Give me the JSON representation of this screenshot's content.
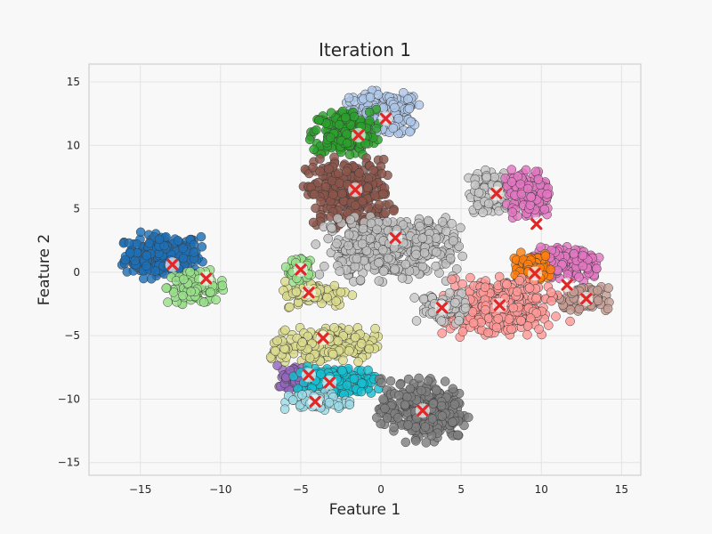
{
  "chart_data": {
    "type": "scatter",
    "title": "Iteration 1",
    "xlabel": "Feature 1",
    "ylabel": "Feature 2",
    "xlim": [
      -18.2,
      16.2
    ],
    "ylim": [
      -16,
      16.4
    ],
    "xticks": [
      -15,
      -10,
      -5,
      0,
      5,
      10,
      15
    ],
    "yticks": [
      -15,
      -10,
      -5,
      0,
      5,
      10,
      15
    ],
    "xtick_labels": [
      "−15",
      "−10",
      "−5",
      "0",
      "5",
      "10",
      "15"
    ],
    "ytick_labels": [
      "−15",
      "−10",
      "−5",
      "0",
      "5",
      "10",
      "15"
    ],
    "grid": true,
    "legend": "none",
    "background": "#f8f8f8",
    "centroid_marker_color": "#e32626",
    "clusters": [
      {
        "color": "#1f6fb4",
        "centroid": [
          -13,
          0.6
        ],
        "blob": {
          "cx": -13.6,
          "cy": 1.3,
          "rx": 2.6,
          "ry": 1.9,
          "n": 260
        }
      },
      {
        "color": "#98df8a",
        "centroid": [
          -10.9,
          -0.5
        ],
        "blob": {
          "cx": -11.5,
          "cy": -1.2,
          "rx": 2.0,
          "ry": 1.4,
          "n": 110
        }
      },
      {
        "color": "#aec7e8",
        "centroid": [
          0.3,
          12.1
        ],
        "blob": {
          "cx": 0.0,
          "cy": 12.5,
          "rx": 2.8,
          "ry": 1.9,
          "n": 200
        }
      },
      {
        "color": "#2ca02c",
        "centroid": [
          -1.4,
          10.8
        ],
        "blob": {
          "cx": -2.3,
          "cy": 11.0,
          "rx": 2.2,
          "ry": 2.0,
          "n": 200
        }
      },
      {
        "color": "#8c564b",
        "centroid": [
          -1.6,
          6.5
        ],
        "blob": {
          "cx": -2.0,
          "cy": 6.2,
          "rx": 2.9,
          "ry": 2.9,
          "n": 300
        }
      },
      {
        "color": "#bfbfbf",
        "centroid": [
          0.9,
          2.7
        ],
        "blob": {
          "cx": 0.6,
          "cy": 2.0,
          "rx": 4.6,
          "ry": 2.8,
          "n": 420
        }
      },
      {
        "color": "#dbdb8d",
        "centroid": [
          -3.6,
          -5.2
        ],
        "blob": {
          "cx": -3.6,
          "cy": -5.8,
          "rx": 3.6,
          "ry": 1.5,
          "n": 200
        }
      },
      {
        "color": "#dbdb8d",
        "centroid": [
          -4.5,
          -1.6
        ],
        "blob": {
          "cx": -4.0,
          "cy": -1.7,
          "rx": 2.3,
          "ry": 1.1,
          "n": 90
        }
      },
      {
        "color": "#9467bd",
        "centroid": [
          -4.5,
          -8.1
        ],
        "blob": {
          "cx": -5.0,
          "cy": -8.3,
          "rx": 1.6,
          "ry": 1.0,
          "n": 90
        }
      },
      {
        "color": "#17becf",
        "centroid": [
          -3.2,
          -8.7
        ],
        "blob": {
          "cx": -2.8,
          "cy": -8.6,
          "rx": 2.8,
          "ry": 1.2,
          "n": 170
        }
      },
      {
        "color": "#9edae5",
        "centroid": [
          -4.1,
          -10.2
        ],
        "blob": {
          "cx": -4.0,
          "cy": -10.2,
          "rx": 2.2,
          "ry": 0.8,
          "n": 70
        }
      },
      {
        "color": "#7f7f7f",
        "centroid": [
          2.6,
          -10.9
        ],
        "blob": {
          "cx": 2.6,
          "cy": -10.9,
          "rx": 2.9,
          "ry": 2.6,
          "n": 320
        }
      },
      {
        "color": "#c7c7c7",
        "centroid": [
          7.2,
          6.2
        ],
        "blob": {
          "cx": 6.9,
          "cy": 6.3,
          "rx": 1.6,
          "ry": 1.8,
          "n": 130
        }
      },
      {
        "color": "#e377c2",
        "centroid": [
          9.7,
          3.8
        ],
        "blob": {
          "cx": 9.2,
          "cy": 6.2,
          "rx": 1.6,
          "ry": 2.0,
          "n": 170
        }
      },
      {
        "color": "#e377c2",
        "centroid": [
          11.6,
          -1.0
        ],
        "blob": {
          "cx": 11.5,
          "cy": 0.6,
          "rx": 2.7,
          "ry": 1.5,
          "n": 180
        }
      },
      {
        "color": "#ff7f0e",
        "centroid": [
          9.6,
          -0.1
        ],
        "blob": {
          "cx": 9.4,
          "cy": 0.4,
          "rx": 1.4,
          "ry": 1.2,
          "n": 90
        }
      },
      {
        "color": "#c49c94",
        "centroid": [
          12.8,
          -2.1
        ],
        "blob": {
          "cx": 12.6,
          "cy": -2.1,
          "rx": 1.8,
          "ry": 1.0,
          "n": 80
        }
      },
      {
        "color": "#ff9896",
        "centroid": [
          7.4,
          -2.6
        ],
        "blob": {
          "cx": 7.4,
          "cy": -2.8,
          "rx": 3.8,
          "ry": 2.6,
          "n": 360
        }
      },
      {
        "color": "#c7c7c7",
        "centroid": [
          3.8,
          -2.8
        ],
        "blob": {
          "cx": 3.8,
          "cy": -2.8,
          "rx": 1.8,
          "ry": 1.3,
          "n": 80
        }
      },
      {
        "color": "#98df8a",
        "centroid": [
          -5.0,
          0.2
        ],
        "blob": {
          "cx": -5.1,
          "cy": 0.2,
          "rx": 0.9,
          "ry": 1.2,
          "n": 40
        }
      }
    ]
  }
}
